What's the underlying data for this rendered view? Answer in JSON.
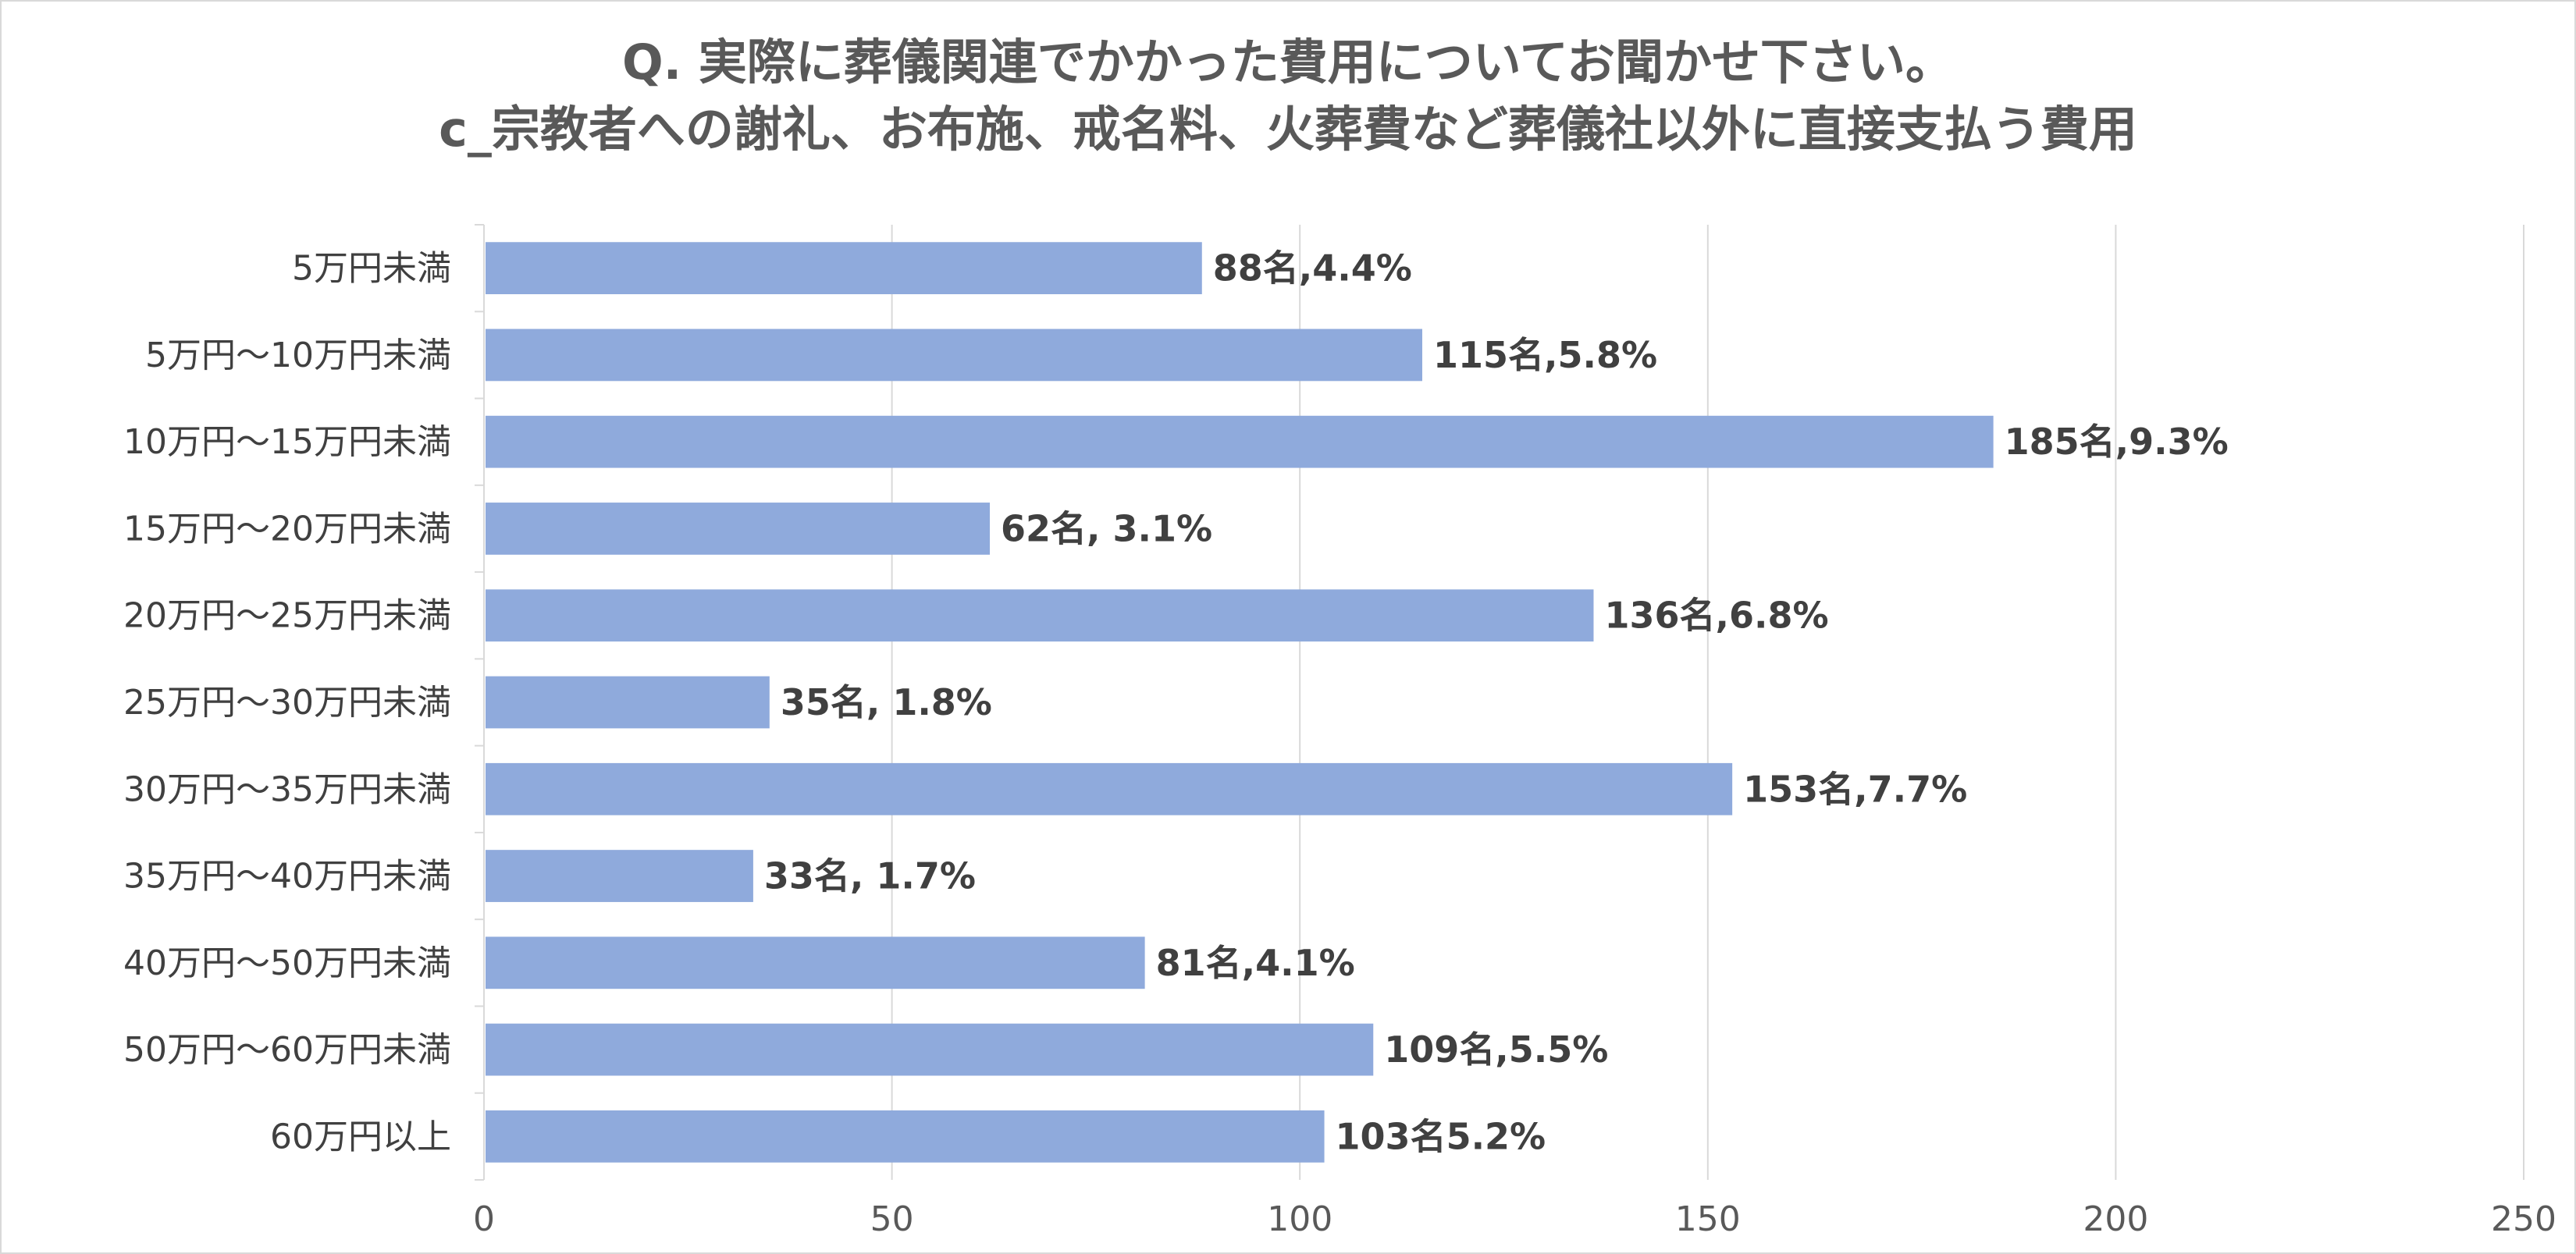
{
  "chart_data": {
    "type": "bar",
    "orientation": "horizontal",
    "title": "Q. 実際に葬儀関連でかかった費用についてお聞かせ下さい。",
    "subtitle": "c_宗教者への謝礼、お布施、戒名料、火葬費など葬儀社以外に直接支払う費用",
    "categories": [
      "5万円未満",
      "5万円～10万円未満",
      "10万円～15万円未満",
      "15万円～20万円未満",
      "20万円～25万円未満",
      "25万円～30万円未満",
      "30万円～35万円未満",
      "35万円～40万円未満",
      "40万円～50万円未満",
      "50万円～60万円未満",
      "60万円以上"
    ],
    "values": [
      88,
      115,
      185,
      62,
      136,
      35,
      153,
      33,
      81,
      109,
      103
    ],
    "data_labels": [
      "88名,4.4%",
      "115名,5.8%",
      "185名,9.3%",
      "62名, 3.1%",
      "136名,6.8%",
      "35名, 1.8%",
      "153名,7.7%",
      "33名, 1.7%",
      "81名,4.1%",
      "109名,5.5%",
      "103名5.2%"
    ],
    "xlim": [
      0,
      250
    ],
    "xticks": [
      0,
      50,
      100,
      150,
      200,
      250
    ],
    "xlabel": "",
    "ylabel": "",
    "grid": true,
    "legend": "none",
    "bar_color": "#8faadc",
    "grid_color": "#d9d9d9"
  }
}
